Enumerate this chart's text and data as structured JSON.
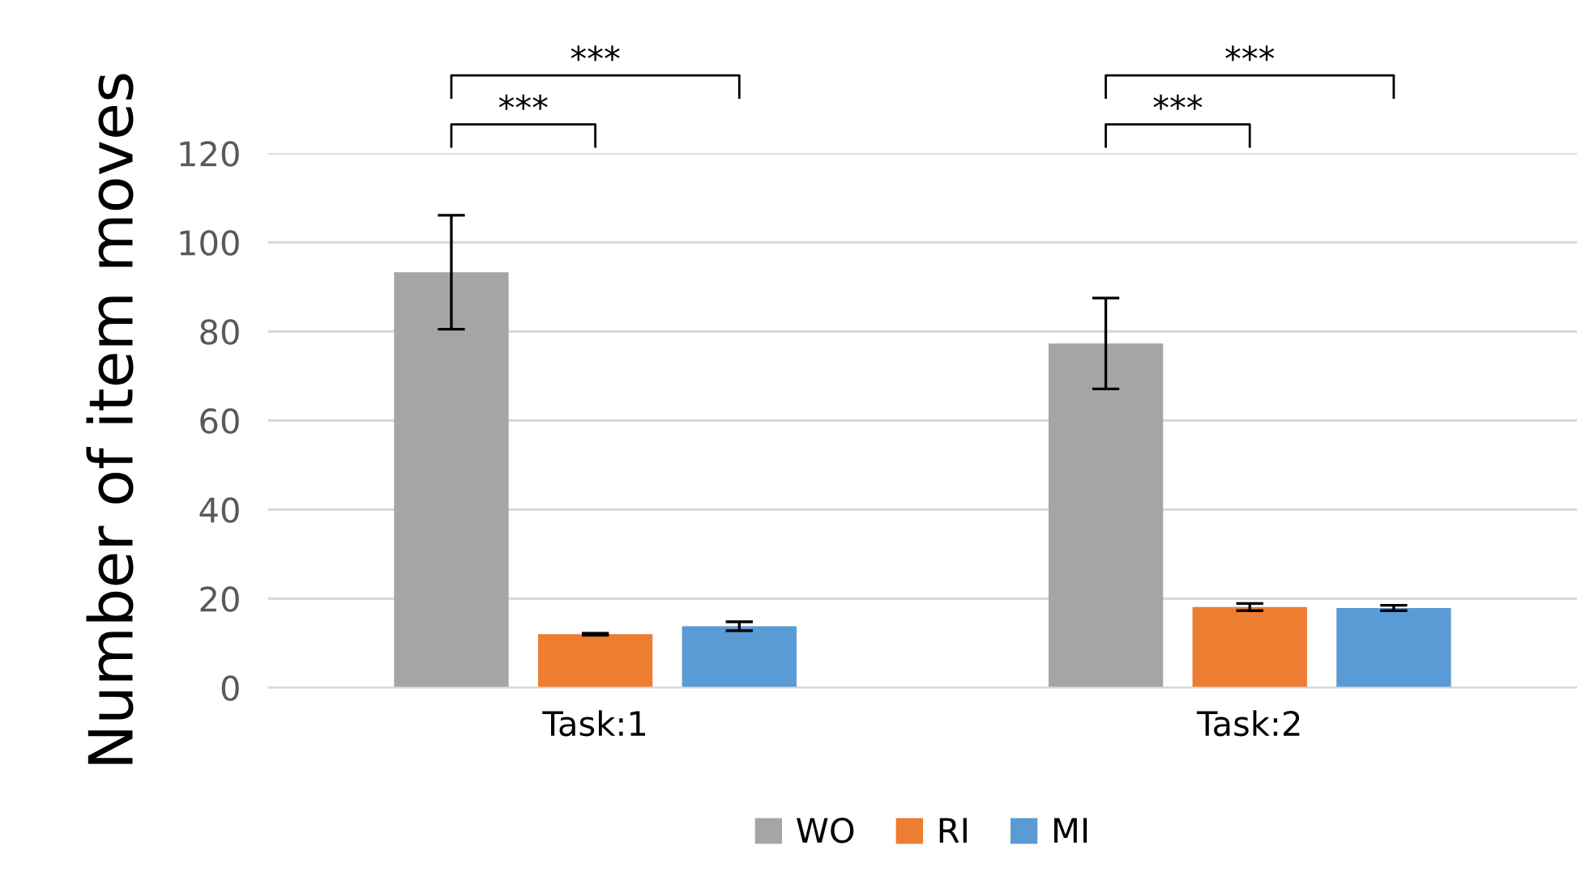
{
  "chart_data": {
    "type": "bar",
    "ylabel": "Number of item moves",
    "categories": [
      "Task:1",
      "Task:2"
    ],
    "series": [
      {
        "name": "WO",
        "color": "#a5a5a5",
        "values": [
          93.3,
          77.3
        ],
        "errors": [
          12.8,
          10.2
        ]
      },
      {
        "name": "RI",
        "color": "#ed7d31",
        "values": [
          12.0,
          18.1
        ],
        "errors": [
          0.2,
          0.8
        ]
      },
      {
        "name": "MI",
        "color": "#5b9bd5",
        "values": [
          13.8,
          17.9
        ],
        "errors": [
          1.0,
          0.6
        ]
      }
    ],
    "ylim": [
      0,
      120
    ],
    "yticks": [
      0,
      20,
      40,
      60,
      80,
      100,
      120
    ],
    "grid": "y",
    "legend": "bottom",
    "annotations": [
      "***",
      "***",
      "***",
      "***"
    ]
  }
}
